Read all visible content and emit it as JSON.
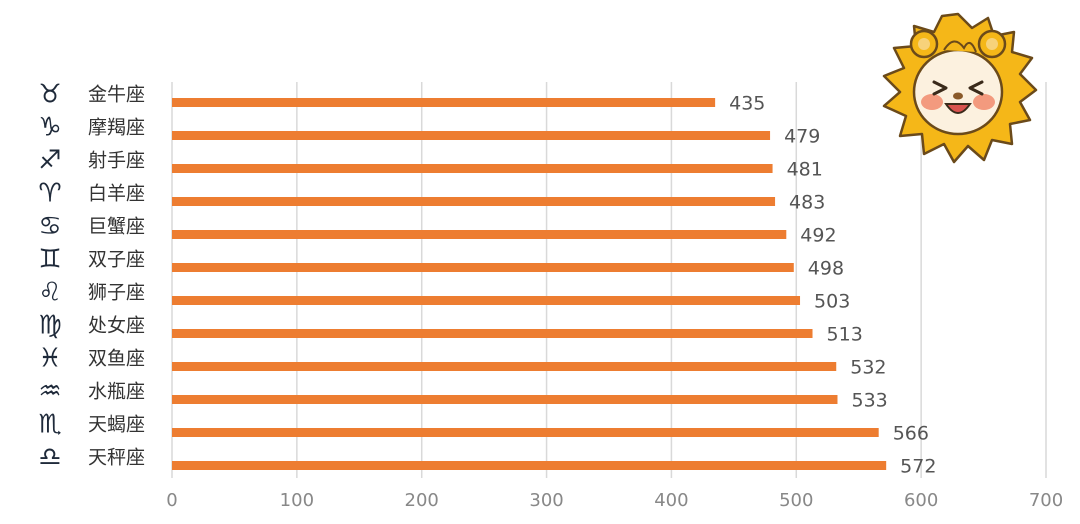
{
  "chart_data": {
    "type": "bar",
    "orientation": "horizontal",
    "categories": [
      "金牛座",
      "摩羯座",
      "射手座",
      "白羊座",
      "巨蟹座",
      "双子座",
      "狮子座",
      "处女座",
      "双鱼座",
      "水瓶座",
      "天蝎座",
      "天秤座"
    ],
    "values": [
      435,
      479,
      481,
      483,
      492,
      498,
      503,
      513,
      532,
      533,
      566,
      572
    ],
    "symbols": [
      "♉",
      "♑",
      "♐",
      "♈",
      "♋",
      "♊",
      "♌",
      "♍",
      "♓",
      "♒",
      "♏",
      "♎"
    ],
    "x_ticks": [
      0,
      100,
      200,
      300,
      400,
      500,
      600,
      700
    ],
    "xlim": [
      0,
      700
    ],
    "title": "",
    "xlabel": "",
    "ylabel": "",
    "grid": "vertical",
    "legend": "none",
    "bar_color": "#ED7D31",
    "grid_color": "#D9D9D9",
    "symbol_color": "#1F2A3A",
    "mascot": "lion-face-sticker"
  }
}
